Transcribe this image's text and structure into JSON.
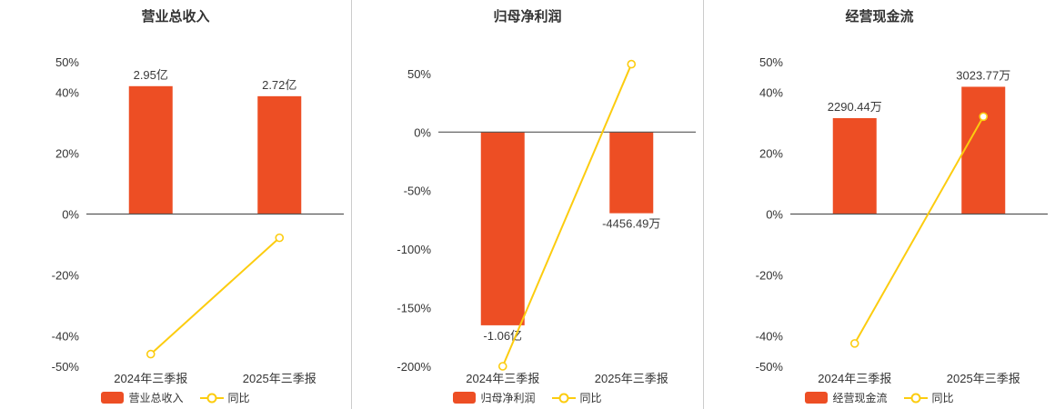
{
  "colors": {
    "bar": "#ed4e24",
    "line": "#fccc0f",
    "marker_fill": "#ffffff",
    "zero_line": "#555555",
    "divider": "#cccccc",
    "text": "#333333"
  },
  "chart_data": [
    {
      "type": "bar",
      "title": "营业总收入",
      "categories": [
        "2024年三季报",
        "2025年三季报"
      ],
      "y_axis": {
        "unit": "%",
        "min": -50,
        "max": 50,
        "tick_values": [
          50,
          40,
          20,
          0,
          -20,
          -40,
          -50
        ],
        "tick_labels": [
          "50%",
          "40%",
          "20%",
          "0%",
          "-20%",
          "-40%",
          "-50%"
        ]
      },
      "bars": {
        "name": "营业总收入",
        "value_labels": [
          "2.95亿",
          "2.72亿"
        ],
        "heights_pct": [
          42,
          38.7
        ]
      },
      "line": {
        "name": "同比",
        "values_pct": [
          -46,
          -7.8
        ]
      },
      "legend_position": "bottom",
      "grid": false
    },
    {
      "type": "bar",
      "title": "归母净利润",
      "categories": [
        "2024年三季报",
        "2025年三季报"
      ],
      "y_axis": {
        "unit": "%",
        "min": -200,
        "max": 60,
        "tick_values": [
          50,
          0,
          -50,
          -100,
          -150,
          -200
        ],
        "tick_labels": [
          "50%",
          "0%",
          "-50%",
          "-100%",
          "-150%",
          "-200%"
        ]
      },
      "bars": {
        "name": "归母净利润",
        "value_labels": [
          "-1.06亿",
          "-4456.49万"
        ],
        "heights_pct": [
          -165,
          -69.3
        ]
      },
      "line": {
        "name": "同比",
        "values_pct": [
          -200,
          58
        ]
      },
      "legend_position": "bottom",
      "grid": false
    },
    {
      "type": "bar",
      "title": "经营现金流",
      "categories": [
        "2024年三季报",
        "2025年三季报"
      ],
      "y_axis": {
        "unit": "%",
        "min": -50,
        "max": 50,
        "tick_values": [
          50,
          40,
          20,
          0,
          -20,
          -40,
          -50
        ],
        "tick_labels": [
          "50%",
          "40%",
          "20%",
          "0%",
          "-20%",
          "-40%",
          "-50%"
        ]
      },
      "bars": {
        "name": "经营现金流",
        "value_labels": [
          "2290.44万",
          "3023.77万"
        ],
        "heights_pct": [
          31.5,
          41.8
        ]
      },
      "line": {
        "name": "同比",
        "values_pct": [
          -42.5,
          32
        ]
      },
      "legend_position": "bottom",
      "grid": false
    }
  ]
}
